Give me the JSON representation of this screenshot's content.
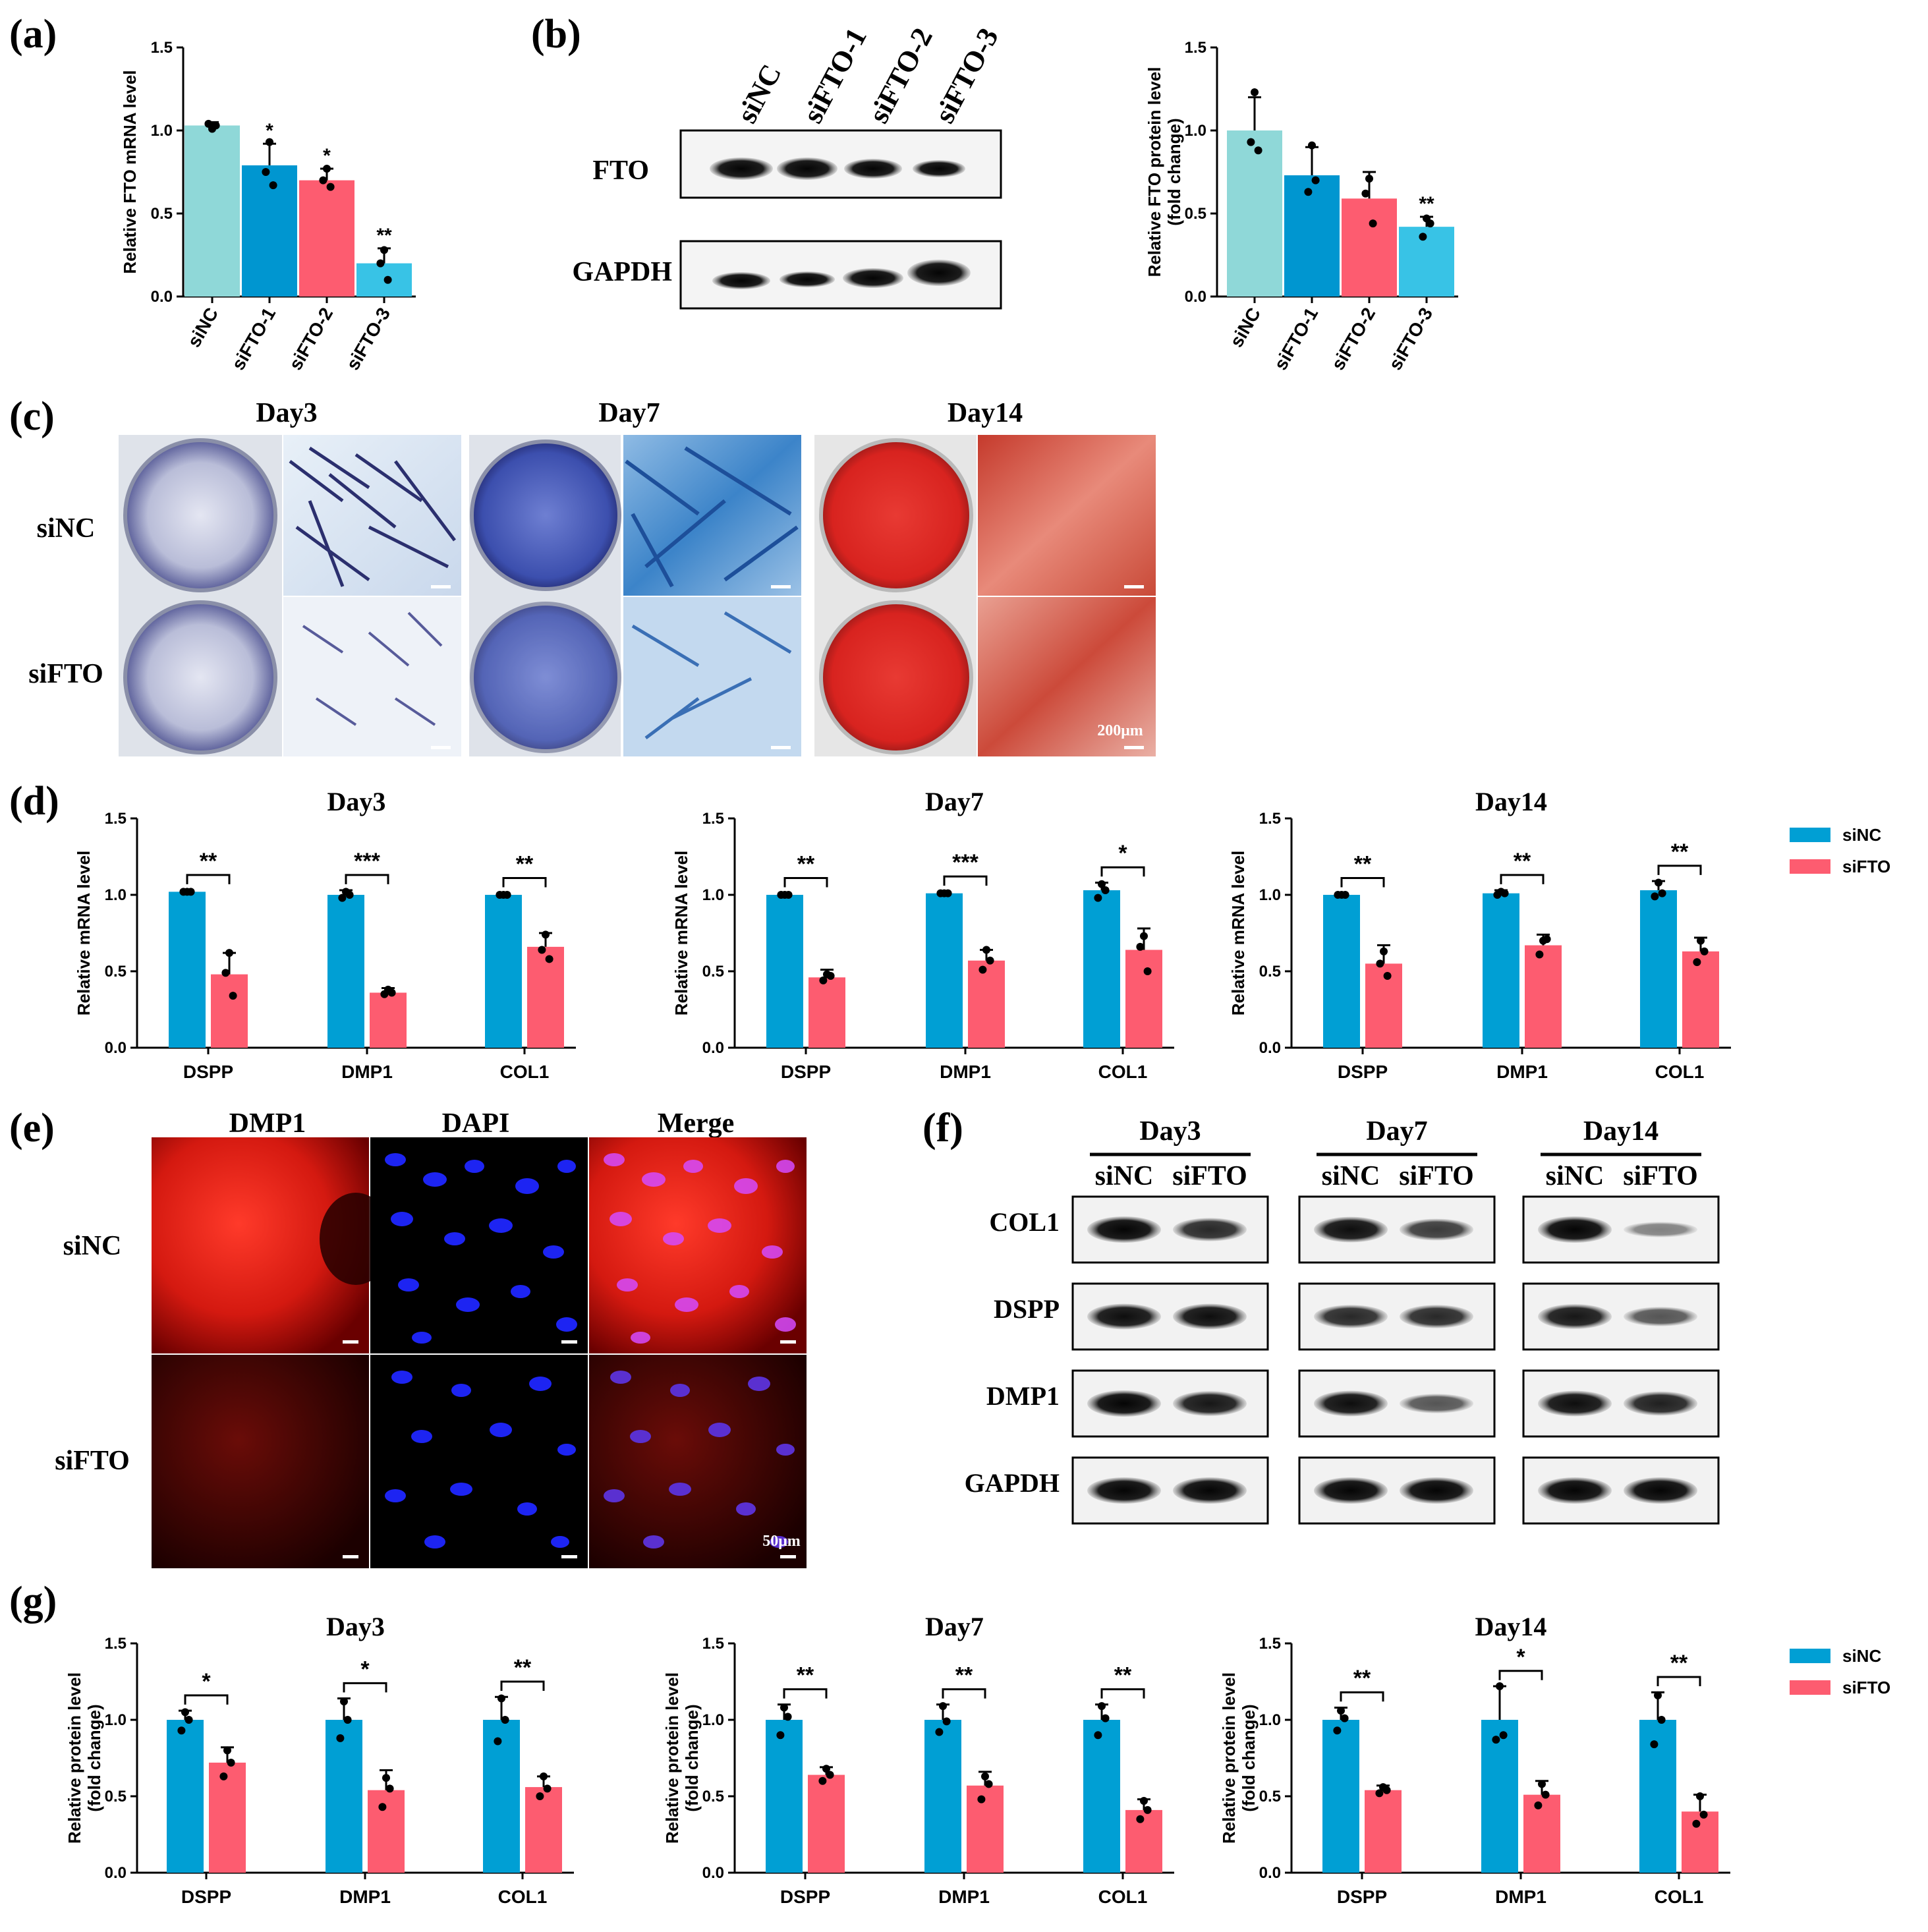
{
  "colors": {
    "siNC": "#009fd4",
    "siFTO": "#fd5c70",
    "a0": "#8fd8d8",
    "a1": "#0096d0",
    "a2": "#fd5c70",
    "a3": "#38c3e6"
  },
  "panel_labels": {
    "a": "(a)",
    "b": "(b)",
    "c": "(c)",
    "d": "(d)",
    "e": "(e)",
    "f": "(f)",
    "g": "(g)"
  },
  "blot_b": {
    "lanes": [
      "siNC",
      "siFTO-1",
      "siFTO-2",
      "siFTO-3"
    ],
    "rows": [
      "FTO",
      "GAPDH"
    ]
  },
  "stain_c": {
    "days": [
      "Day3",
      "Day7",
      "Day14"
    ],
    "rows": [
      "siNC",
      "siFTO"
    ],
    "scale1": "200μm"
  },
  "if_e": {
    "cols": [
      "DMP1",
      "DAPI",
      "Merge"
    ],
    "rows": [
      "siNC",
      "siFTO"
    ],
    "scale": "50μm"
  },
  "blot_f": {
    "days": [
      "Day3",
      "Day7",
      "Day14"
    ],
    "lanes": [
      "siNC",
      "siFTO"
    ],
    "rows": [
      "COL1",
      "DSPP",
      "DMP1",
      "GAPDH"
    ]
  },
  "legend": {
    "siNC": "siNC",
    "siFTO": "siFTO"
  },
  "chart_data": [
    {
      "id": "a",
      "type": "bar",
      "categories": [
        "siNC",
        "siFTO-1",
        "siFTO-2",
        "siFTO-3"
      ],
      "values": [
        1.03,
        0.79,
        0.7,
        0.2
      ],
      "errors": [
        0.02,
        0.13,
        0.07,
        0.09
      ],
      "stars": [
        "",
        "*",
        "*",
        "**"
      ],
      "ylabel": "Relative FTO mRNA level",
      "ylim": [
        0,
        1.5
      ],
      "yticks": [
        "0.0",
        "0.5",
        "1.0",
        "1.5"
      ],
      "points": [
        [
          1.01,
          1.04,
          1.03
        ],
        [
          0.93,
          0.75,
          0.67
        ],
        [
          0.77,
          0.7,
          0.66
        ],
        [
          0.28,
          0.2,
          0.1
        ]
      ]
    },
    {
      "id": "b",
      "type": "bar",
      "categories": [
        "siNC",
        "siFTO-1",
        "siFTO-2",
        "siFTO-3"
      ],
      "values": [
        1.0,
        0.73,
        0.59,
        0.42
      ],
      "errors": [
        0.2,
        0.17,
        0.16,
        0.06
      ],
      "stars": [
        "",
        "",
        "",
        "**"
      ],
      "ylabel": "Relative FTO protein level",
      "ylabel2": "(fold change)",
      "ylim": [
        0,
        1.5
      ],
      "yticks": [
        "0.0",
        "0.5",
        "1.0",
        "1.5"
      ],
      "points": [
        [
          1.23,
          0.93,
          0.88
        ],
        [
          0.91,
          0.63,
          0.7
        ],
        [
          0.71,
          0.62,
          0.44
        ],
        [
          0.47,
          0.36,
          0.44
        ]
      ]
    },
    {
      "id": "d1",
      "type": "bar",
      "title": "Day3",
      "categories": [
        "DSPP",
        "DMP1",
        "COL1"
      ],
      "series": [
        {
          "name": "siNC",
          "values": [
            1.02,
            1.0,
            1.0
          ],
          "errors": [
            0.01,
            0.03,
            0.01
          ]
        },
        {
          "name": "siFTO",
          "values": [
            0.48,
            0.36,
            0.66
          ],
          "errors": [
            0.14,
            0.03,
            0.09
          ]
        }
      ],
      "stars": [
        "**",
        "***",
        "**"
      ],
      "ylabel": "Relative mRNA level",
      "ylim": [
        0,
        1.5
      ],
      "yticks": [
        "0.0",
        "0.5",
        "1.0",
        "1.5"
      ],
      "points": [
        [
          [
            1.02,
            1.02,
            1.02
          ],
          [
            0.62,
            0.49,
            0.34
          ]
        ],
        [
          [
            1.02,
            0.98,
            1.0
          ],
          [
            0.38,
            0.35,
            0.36
          ]
        ],
        [
          [
            1.0,
            1.0,
            1.0
          ],
          [
            0.74,
            0.64,
            0.58
          ]
        ]
      ]
    },
    {
      "id": "d2",
      "type": "bar",
      "title": "Day7",
      "categories": [
        "DSPP",
        "DMP1",
        "COL1"
      ],
      "series": [
        {
          "name": "siNC",
          "values": [
            1.0,
            1.01,
            1.03
          ],
          "errors": [
            0.01,
            0.01,
            0.05
          ]
        },
        {
          "name": "siFTO",
          "values": [
            0.46,
            0.57,
            0.64
          ],
          "errors": [
            0.05,
            0.07,
            0.14
          ]
        }
      ],
      "stars": [
        "**",
        "***",
        "*"
      ],
      "ylabel": "Relative mRNA level",
      "ylim": [
        0,
        1.5
      ],
      "yticks": [
        "0.0",
        "0.5",
        "1.0",
        "1.5"
      ],
      "points": [
        [
          [
            1.0,
            1.0,
            1.0
          ],
          [
            0.48,
            0.44,
            0.47
          ]
        ],
        [
          [
            1.01,
            1.01,
            1.01
          ],
          [
            0.64,
            0.51,
            0.57
          ]
        ],
        [
          [
            1.07,
            0.98,
            1.03
          ],
          [
            0.73,
            0.66,
            0.5
          ]
        ]
      ]
    },
    {
      "id": "d3",
      "type": "bar",
      "title": "Day14",
      "categories": [
        "DSPP",
        "DMP1",
        "COL1"
      ],
      "series": [
        {
          "name": "siNC",
          "values": [
            1.0,
            1.01,
            1.03
          ],
          "errors": [
            0.01,
            0.02,
            0.06
          ]
        },
        {
          "name": "siFTO",
          "values": [
            0.55,
            0.67,
            0.63
          ],
          "errors": [
            0.12,
            0.07,
            0.09
          ]
        }
      ],
      "stars": [
        "**",
        "**",
        "**"
      ],
      "ylabel": "Relative mRNA level",
      "ylim": [
        0,
        1.5
      ],
      "yticks": [
        "0.0",
        "0.5",
        "1.0",
        "1.5"
      ],
      "points": [
        [
          [
            1.0,
            1.0,
            1.0
          ],
          [
            0.63,
            0.55,
            0.47
          ]
        ],
        [
          [
            1.02,
            1.0,
            1.01
          ],
          [
            0.7,
            0.61,
            0.71
          ]
        ],
        [
          [
            1.08,
            0.99,
            1.01
          ],
          [
            0.7,
            0.56,
            0.63
          ]
        ]
      ]
    },
    {
      "id": "g1",
      "type": "bar",
      "title": "Day3",
      "categories": [
        "DSPP",
        "DMP1",
        "COL1"
      ],
      "series": [
        {
          "name": "siNC",
          "values": [
            1.0,
            1.0,
            1.0
          ],
          "errors": [
            0.06,
            0.14,
            0.15
          ]
        },
        {
          "name": "siFTO",
          "values": [
            0.72,
            0.54,
            0.56
          ],
          "errors": [
            0.1,
            0.13,
            0.07
          ]
        }
      ],
      "stars": [
        "*",
        "*",
        "**"
      ],
      "ylabel": "Relative protein level",
      "ylabel2": "(fold change)",
      "ylim": [
        0,
        1.5
      ],
      "yticks": [
        "0.0",
        "0.5",
        "1.0",
        "1.5"
      ],
      "points": [
        [
          [
            1.05,
            0.93,
            1.0
          ],
          [
            0.8,
            0.63,
            0.72
          ]
        ],
        [
          [
            1.12,
            0.88,
            1.0
          ],
          [
            0.62,
            0.43,
            0.55
          ]
        ],
        [
          [
            1.14,
            0.86,
            1.0
          ],
          [
            0.63,
            0.5,
            0.55
          ]
        ]
      ]
    },
    {
      "id": "g2",
      "type": "bar",
      "title": "Day7",
      "categories": [
        "DSPP",
        "DMP1",
        "COL1"
      ],
      "series": [
        {
          "name": "siNC",
          "values": [
            1.0,
            1.0,
            1.0
          ],
          "errors": [
            0.1,
            0.1,
            0.1
          ]
        },
        {
          "name": "siFTO",
          "values": [
            0.64,
            0.57,
            0.41
          ],
          "errors": [
            0.05,
            0.09,
            0.07
          ]
        }
      ],
      "stars": [
        "**",
        "**",
        "**"
      ],
      "ylabel": "Relative protein level",
      "ylabel2": "(fold change)",
      "ylim": [
        0,
        1.5
      ],
      "yticks": [
        "0.0",
        "0.5",
        "1.0",
        "1.5"
      ],
      "points": [
        [
          [
            1.08,
            0.9,
            1.02
          ],
          [
            0.68,
            0.6,
            0.64
          ]
        ],
        [
          [
            1.09,
            0.92,
            0.99
          ],
          [
            0.63,
            0.48,
            0.58
          ]
        ],
        [
          [
            1.09,
            0.9,
            1.01
          ],
          [
            0.47,
            0.35,
            0.41
          ]
        ]
      ]
    },
    {
      "id": "g3",
      "type": "bar",
      "title": "Day14",
      "categories": [
        "DSPP",
        "DMP1",
        "COL1"
      ],
      "series": [
        {
          "name": "siNC",
          "values": [
            1.0,
            1.0,
            1.0
          ],
          "errors": [
            0.08,
            0.22,
            0.18
          ]
        },
        {
          "name": "siFTO",
          "values": [
            0.54,
            0.51,
            0.4
          ],
          "errors": [
            0.03,
            0.09,
            0.11
          ]
        }
      ],
      "stars": [
        "**",
        "*",
        "**"
      ],
      "ylabel": "Relative protein level",
      "ylabel2": "(fold change)",
      "ylim": [
        0,
        1.5
      ],
      "yticks": [
        "0.0",
        "0.5",
        "1.0",
        "1.5"
      ],
      "points": [
        [
          [
            1.06,
            0.93,
            1.01
          ],
          [
            0.56,
            0.52,
            0.54
          ]
        ],
        [
          [
            1.22,
            0.87,
            0.9
          ],
          [
            0.58,
            0.44,
            0.51
          ]
        ],
        [
          [
            1.16,
            0.84,
            1.0
          ],
          [
            0.5,
            0.32,
            0.38
          ]
        ]
      ]
    }
  ]
}
